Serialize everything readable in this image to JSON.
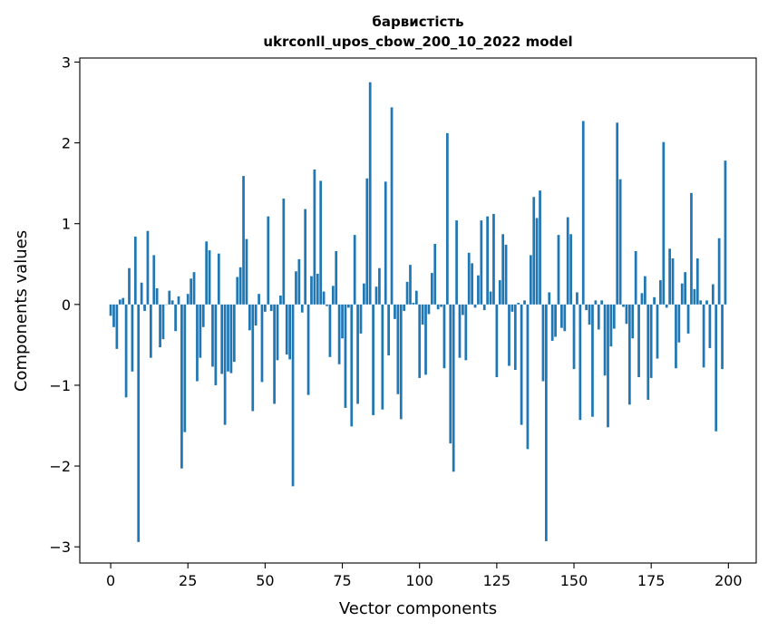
{
  "chart_data": {
    "type": "bar",
    "title": "барвистість",
    "subtitle": "ukrconll_upos_cbow_200_10_2022 model",
    "xlabel": "Vector components",
    "ylabel": "Components values",
    "xlim": [
      -10,
      209
    ],
    "ylim": [
      -3.2,
      3.05
    ],
    "xticks": [
      0,
      25,
      50,
      75,
      100,
      125,
      150,
      175,
      200
    ],
    "xtick_labels": [
      "0",
      "25",
      "50",
      "75",
      "100",
      "125",
      "150",
      "175",
      "200"
    ],
    "yticks": [
      3,
      2,
      1,
      0,
      -1,
      -2,
      -3
    ],
    "ytick_labels": [
      "3",
      "2",
      "1",
      "0",
      "−1",
      "−2",
      "−3"
    ],
    "bar_color": "#1f77b4",
    "series": [
      {
        "name": "барвистість",
        "values": [
          -0.14,
          -0.28,
          -0.55,
          0.06,
          0.08,
          -1.15,
          0.45,
          -0.83,
          0.84,
          -2.94,
          0.27,
          -0.08,
          0.91,
          -0.66,
          0.61,
          0.2,
          -0.53,
          -0.43,
          0.0,
          0.17,
          0.05,
          -0.33,
          0.1,
          -2.03,
          -1.58,
          0.13,
          0.32,
          0.4,
          -0.95,
          -0.66,
          -0.28,
          0.78,
          0.67,
          -0.77,
          -1.0,
          0.63,
          -0.86,
          -1.49,
          -0.83,
          -0.85,
          -0.71,
          0.34,
          0.46,
          1.59,
          0.81,
          -0.32,
          -1.32,
          -0.26,
          0.13,
          -0.96,
          -0.09,
          1.09,
          -0.08,
          -1.23,
          -0.69,
          0.11,
          1.31,
          -0.62,
          -0.68,
          -2.25,
          0.41,
          0.56,
          -0.1,
          1.18,
          -1.12,
          0.35,
          1.67,
          0.38,
          1.53,
          0.16,
          -0.02,
          -0.65,
          0.23,
          0.66,
          -0.74,
          -0.42,
          -1.28,
          -0.04,
          -1.51,
          0.86,
          -1.23,
          -0.36,
          0.26,
          1.56,
          2.75,
          -1.37,
          0.22,
          0.45,
          -1.3,
          1.52,
          -0.63,
          2.44,
          -0.18,
          -1.11,
          -1.42,
          -0.08,
          0.28,
          0.49,
          0.02,
          0.17,
          -0.91,
          -0.25,
          -0.87,
          -0.12,
          0.39,
          0.75,
          -0.06,
          -0.03,
          -0.79,
          2.12,
          -1.72,
          -2.07,
          1.04,
          -0.66,
          -0.13,
          -0.69,
          0.64,
          0.51,
          -0.04,
          0.36,
          1.04,
          -0.07,
          1.09,
          0.16,
          1.12,
          -0.9,
          0.3,
          0.87,
          0.74,
          -0.76,
          -0.09,
          -0.81,
          0.02,
          -1.49,
          0.05,
          -1.79,
          0.61,
          1.33,
          1.07,
          1.41,
          -0.95,
          -2.93,
          0.15,
          -0.45,
          -0.4,
          0.86,
          -0.29,
          -0.33,
          1.08,
          0.87,
          -0.8,
          0.15,
          -1.43,
          2.27,
          -0.07,
          -0.25,
          -1.39,
          0.05,
          -0.31,
          0.05,
          -0.88,
          -1.52,
          -0.52,
          -0.3,
          2.25,
          1.55,
          -0.03,
          -0.24,
          -1.24,
          -0.42,
          0.66,
          -0.9,
          0.14,
          0.35,
          -1.18,
          -0.91,
          0.09,
          -0.67,
          0.3,
          2.01,
          -0.04,
          0.69,
          0.57,
          -0.79,
          -0.47,
          0.26,
          0.4,
          -0.36,
          1.38,
          0.19,
          0.57,
          0.05,
          -0.78,
          0.05,
          -0.54,
          0.25,
          -1.57,
          0.82,
          -0.8,
          1.78
        ]
      }
    ]
  }
}
